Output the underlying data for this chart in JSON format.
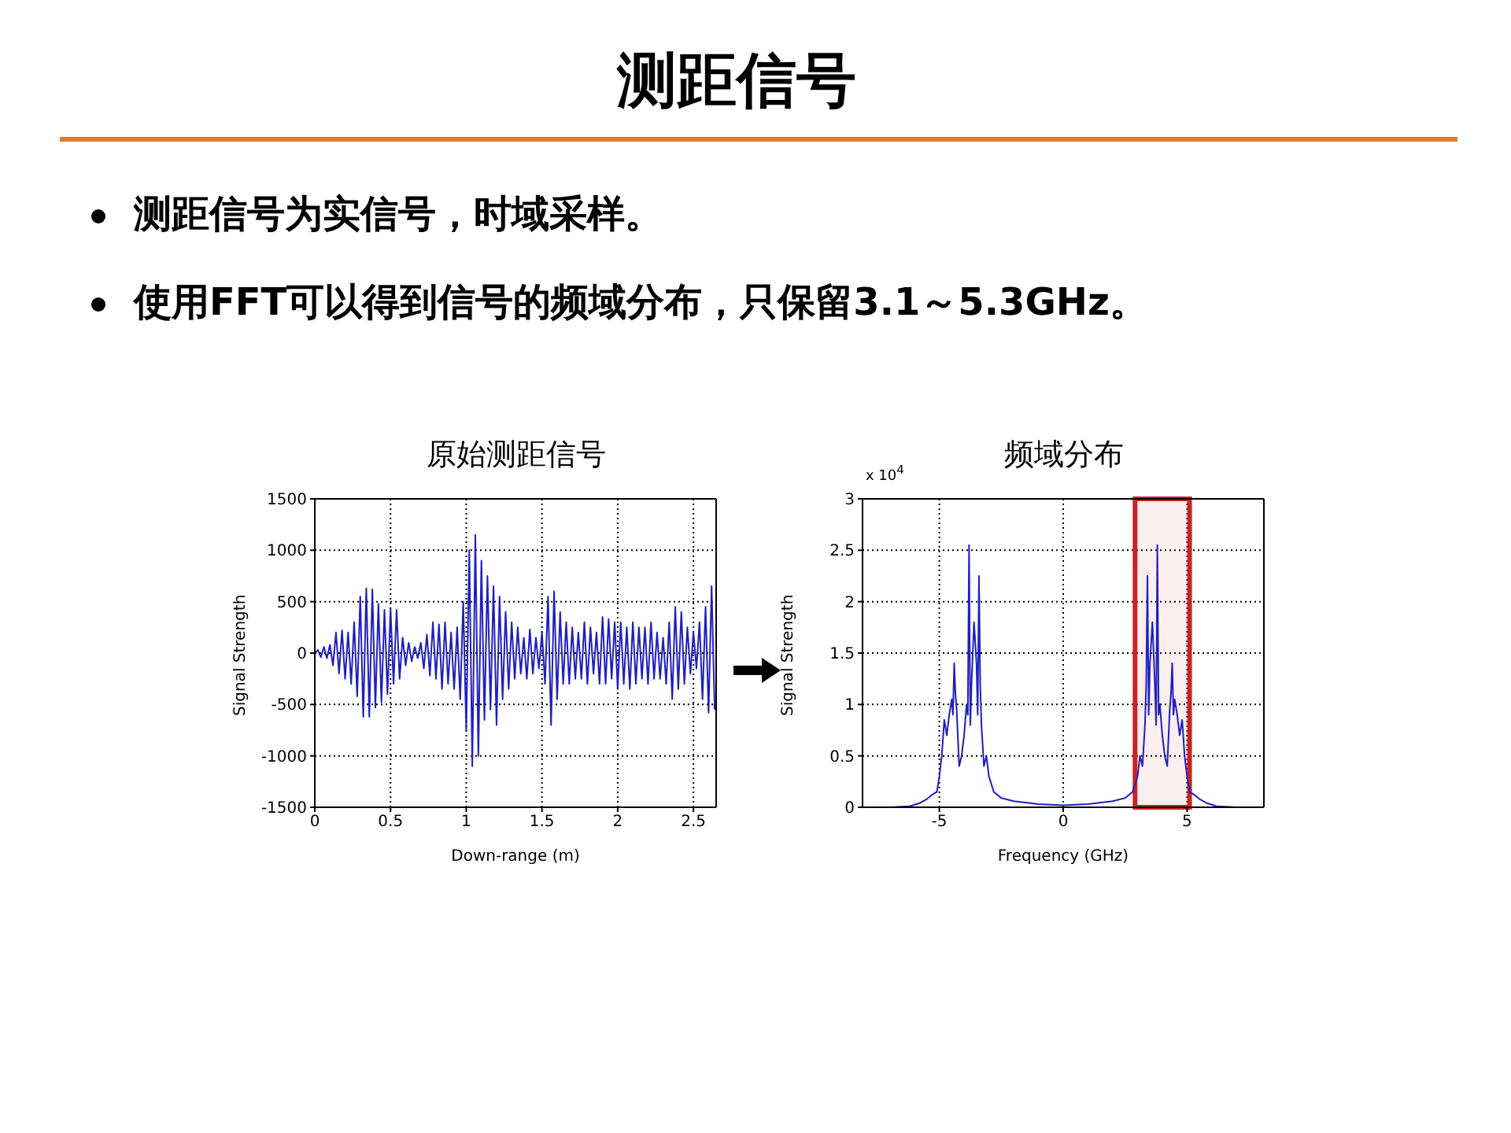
{
  "chart_data": [
    {
      "type": "other",
      "title": "测距信号",
      "annotations": [
        "测距信号为实信号，时域采样。",
        "使用FFT可以得到信号的频域分布，只保留3.1～5.3GHz。"
      ]
    },
    {
      "type": "line",
      "title": "原始测距信号",
      "xlabel": "Down-range (m)",
      "ylabel": "Signal Strength",
      "xlim": [
        0,
        2.65
      ],
      "xticks": [
        0,
        0.5,
        1,
        1.5,
        2,
        2.5
      ],
      "ylim": [
        -1500,
        1500
      ],
      "yticks": [
        -1500,
        -1000,
        -500,
        0,
        500,
        1000,
        1500
      ],
      "grid": true,
      "marker": "none",
      "x": [
        0,
        0.02,
        0.04,
        0.06,
        0.08,
        0.1,
        0.12,
        0.14,
        0.16,
        0.18,
        0.2,
        0.22,
        0.24,
        0.26,
        0.28,
        0.3,
        0.32,
        0.34,
        0.36,
        0.38,
        0.4,
        0.42,
        0.44,
        0.46,
        0.48,
        0.5,
        0.52,
        0.54,
        0.56,
        0.58,
        0.6,
        0.62,
        0.64,
        0.66,
        0.68,
        0.7,
        0.72,
        0.74,
        0.76,
        0.78,
        0.8,
        0.82,
        0.84,
        0.86,
        0.88,
        0.9,
        0.92,
        0.94,
        0.96,
        0.98,
        1,
        1.02,
        1.04,
        1.06,
        1.08,
        1.1,
        1.12,
        1.14,
        1.16,
        1.18,
        1.2,
        1.22,
        1.24,
        1.26,
        1.28,
        1.3,
        1.32,
        1.34,
        1.36,
        1.38,
        1.4,
        1.42,
        1.44,
        1.46,
        1.48,
        1.5,
        1.52,
        1.54,
        1.56,
        1.58,
        1.6,
        1.62,
        1.64,
        1.66,
        1.68,
        1.7,
        1.72,
        1.74,
        1.76,
        1.78,
        1.8,
        1.82,
        1.84,
        1.86,
        1.88,
        1.9,
        1.92,
        1.94,
        1.96,
        1.98,
        2,
        2.02,
        2.04,
        2.06,
        2.08,
        2.1,
        2.12,
        2.14,
        2.16,
        2.18,
        2.2,
        2.22,
        2.24,
        2.26,
        2.28,
        2.3,
        2.32,
        2.34,
        2.36,
        2.38,
        2.4,
        2.42,
        2.44,
        2.46,
        2.48,
        2.5,
        2.52,
        2.54,
        2.56,
        2.58,
        2.6,
        2.62,
        2.64
      ],
      "series": [
        {
          "color": "#1f1fbf",
          "values": [
            0,
            30,
            -40,
            60,
            -50,
            80,
            -120,
            200,
            -200,
            220,
            -250,
            200,
            -300,
            300,
            -420,
            550,
            -620,
            630,
            -620,
            620,
            -530,
            480,
            -480,
            420,
            -400,
            430,
            -300,
            420,
            -250,
            150,
            -120,
            100,
            -80,
            60,
            -50,
            100,
            -150,
            180,
            -220,
            300,
            -250,
            280,
            -350,
            300,
            -300,
            200,
            -350,
            250,
            -450,
            500,
            -750,
            1000,
            -1100,
            1150,
            -1000,
            900,
            -650,
            750,
            -550,
            650,
            -700,
            550,
            -450,
            400,
            -350,
            300,
            -250,
            250,
            -200,
            150,
            -250,
            230,
            -200,
            150,
            -150,
            200,
            -300,
            550,
            -700,
            600,
            -450,
            400,
            -300,
            300,
            -300,
            250,
            -250,
            200,
            -250,
            300,
            -300,
            250,
            -200,
            200,
            -300,
            350,
            -300,
            330,
            -250,
            300,
            -350,
            300,
            -300,
            250,
            -350,
            300,
            -300,
            250,
            -250,
            250,
            -300,
            300,
            -250,
            200,
            -250,
            150,
            -300,
            300,
            -450,
            450,
            -350,
            400,
            -300,
            250,
            -200,
            200,
            -150,
            300,
            -450,
            450,
            -580,
            650,
            -550
          ]
        }
      ]
    },
    {
      "type": "line",
      "title": "频域分布",
      "xlabel": "Frequency (GHz)",
      "ylabel": "Signal Strength",
      "annotations": [
        "x 10$^{4}$"
      ],
      "xlim": [
        -8.1,
        8.1
      ],
      "xticks": [
        -5,
        0,
        5
      ],
      "ylim": [
        0,
        3
      ],
      "yticks": [
        0,
        0.5,
        1,
        1.5,
        2,
        2.5,
        3
      ],
      "grid": true,
      "marker": "none",
      "bands": [
        {
          "axis": "x",
          "from": 2.9,
          "to": 5.1,
          "color": "#cc2222"
        }
      ],
      "x": [
        -8.1,
        -7,
        -6.2,
        -5.8,
        -5.5,
        -5.3,
        -5.1,
        -5,
        -4.9,
        -4.8,
        -4.7,
        -4.6,
        -4.5,
        -4.45,
        -4.4,
        -4.35,
        -4.3,
        -4.2,
        -4.1,
        -4,
        -3.9,
        -3.85,
        -3.8,
        -3.75,
        -3.7,
        -3.6,
        -3.5,
        -3.45,
        -3.4,
        -3.35,
        -3.3,
        -3.2,
        -3.1,
        -3,
        -2.8,
        -2.5,
        -2,
        -1,
        0,
        1,
        2,
        2.5,
        2.8,
        3,
        3.1,
        3.2,
        3.3,
        3.35,
        3.4,
        3.45,
        3.5,
        3.6,
        3.7,
        3.75,
        3.8,
        3.85,
        3.9,
        4,
        4.1,
        4.2,
        4.3,
        4.35,
        4.4,
        4.45,
        4.5,
        4.6,
        4.7,
        4.8,
        4.9,
        5,
        5.1,
        5.3,
        5.5,
        5.8,
        6.2,
        7,
        8.1
      ],
      "series": [
        {
          "color": "#1f1fbf",
          "values": [
            0,
            0,
            0.01,
            0.04,
            0.08,
            0.12,
            0.15,
            0.3,
            0.5,
            0.85,
            0.7,
            0.9,
            1.05,
            0.9,
            1.4,
            1.1,
            0.95,
            0.4,
            0.5,
            0.7,
            1,
            0.9,
            2.55,
            0.8,
            1.2,
            1.8,
            1.4,
            0.9,
            2.25,
            1.2,
            0.8,
            0.4,
            0.5,
            0.3,
            0.15,
            0.09,
            0.06,
            0.03,
            0.02,
            0.03,
            0.06,
            0.09,
            0.15,
            0.3,
            0.5,
            0.4,
            0.8,
            1.2,
            2.25,
            0.9,
            1.4,
            1.8,
            1.2,
            0.8,
            2.55,
            0.9,
            1,
            0.7,
            0.5,
            0.4,
            0.95,
            1.1,
            1.4,
            0.9,
            1.05,
            0.9,
            0.7,
            0.85,
            0.5,
            0.3,
            0.15,
            0.12,
            0.08,
            0.04,
            0.01,
            0,
            0
          ]
        }
      ]
    }
  ]
}
